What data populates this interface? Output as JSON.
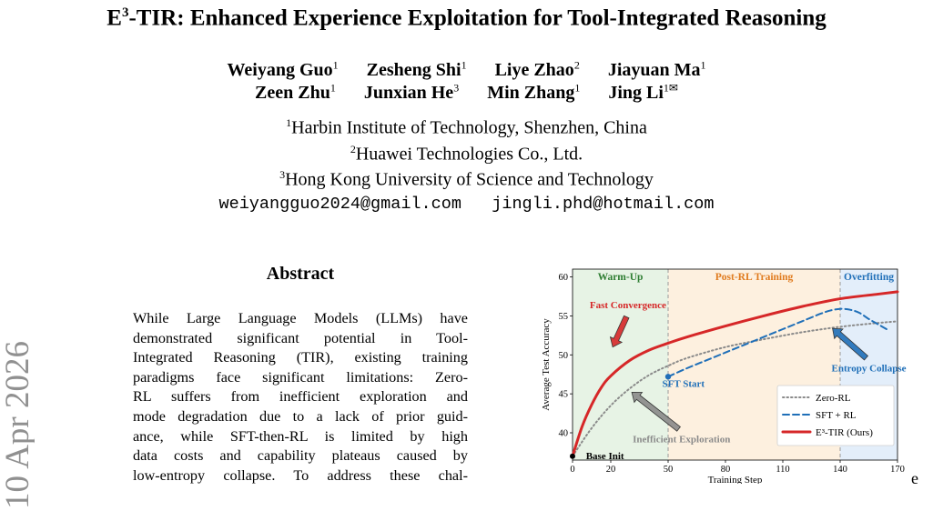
{
  "paper": {
    "title_prefix": "E",
    "title_sup": "3",
    "title_rest": "-TIR: Enhanced Experience Exploitation for Tool-Integrated Reasoning",
    "authors_row1": [
      {
        "name": "Weiyang Guo",
        "aff": "1"
      },
      {
        "name": "Zesheng Shi",
        "aff": "1"
      },
      {
        "name": "Liye Zhao",
        "aff": "2"
      },
      {
        "name": "Jiayuan Ma",
        "aff": "1"
      }
    ],
    "authors_row2": [
      {
        "name": "Zeen Zhu",
        "aff": "1"
      },
      {
        "name": "Junxian He",
        "aff": "3"
      },
      {
        "name": "Min Zhang",
        "aff": "1"
      },
      {
        "name": "Jing Li",
        "aff": "1✉"
      }
    ],
    "affiliations": [
      {
        "num": "1",
        "text": "Harbin Institute of Technology, Shenzhen, China"
      },
      {
        "num": "2",
        "text": "Huawei Technologies Co., Ltd."
      },
      {
        "num": "3",
        "text": "Hong Kong University of Science and Technology"
      }
    ],
    "emails": "weiyangguo2024@gmail.com   jingli.phd@hotmail.com",
    "side_stamp": "10 Apr 2026",
    "abstract_heading": "Abstract",
    "abstract_lines": [
      "While Large Language Models (LLMs) have",
      "demonstrated significant potential in Tool-",
      "Integrated Reasoning (TIR), existing training",
      "paradigms face significant limitations: Zero-",
      "RL suffers from inefficient exploration and",
      "mode degradation due to a lack of prior guid-",
      "ance, while SFT-then-RL is limited by high",
      "data costs and capability plateaus caused by",
      "low-entropy collapse. To address these chal-"
    ],
    "trailing_char": "e"
  },
  "chart_data": {
    "type": "line",
    "xlabel": "Training Step",
    "ylabel": "Average Test Accuracy",
    "xlim": [
      0,
      170
    ],
    "ylim": [
      36.5,
      61
    ],
    "xticks": [
      0,
      20,
      50,
      80,
      110,
      140,
      170
    ],
    "yticks": [
      40,
      45,
      50,
      55,
      60
    ],
    "grid": false,
    "legend_position": "lower-right",
    "phases": [
      {
        "label": "Warm-Up",
        "from": 0,
        "to": 50,
        "fill": "#e7f3e5",
        "color": "#2e7d32"
      },
      {
        "label": "Post-RL Training",
        "from": 50,
        "to": 140,
        "fill": "#fdf0df",
        "color": "#e07b1e"
      },
      {
        "label": "Overfitting",
        "from": 140,
        "to": 170,
        "fill": "#e3eefa",
        "color": "#1f6fb8"
      }
    ],
    "series": [
      {
        "name": "Zero-RL",
        "color": "#8a8a8a",
        "style": "dotted",
        "x": [
          0,
          10,
          20,
          30,
          40,
          50,
          60,
          80,
          100,
          120,
          140,
          160,
          170
        ],
        "y": [
          37.0,
          40.6,
          43.5,
          45.7,
          47.4,
          48.6,
          49.6,
          51.0,
          52.0,
          52.9,
          53.6,
          54.1,
          54.3
        ]
      },
      {
        "name": "SFT + RL",
        "color": "#1f6fb8",
        "style": "dashed",
        "x": [
          50,
          60,
          70,
          80,
          90,
          100,
          110,
          120,
          130,
          135,
          140,
          145,
          150,
          155,
          160,
          165
        ],
        "y": [
          47.2,
          48.3,
          49.3,
          50.3,
          51.3,
          52.3,
          53.3,
          54.3,
          55.3,
          55.7,
          55.9,
          55.8,
          55.4,
          54.6,
          53.9,
          53.2
        ]
      },
      {
        "name": "E³-TIR (Ours)",
        "color": "#d62728",
        "style": "solid",
        "x": [
          0,
          5,
          10,
          15,
          20,
          30,
          40,
          50,
          60,
          80,
          100,
          120,
          140,
          160,
          170
        ],
        "y": [
          37.0,
          40.8,
          43.6,
          45.8,
          47.3,
          49.3,
          50.6,
          51.5,
          52.3,
          53.7,
          55.0,
          56.2,
          57.2,
          57.8,
          58.1
        ]
      }
    ],
    "annotations": [
      {
        "text": "Fast Convergence",
        "color": "#d62728",
        "x": 29,
        "y": 56,
        "arrow_to": [
          21,
          51
        ]
      },
      {
        "text": "Inefficient Exploration",
        "color": "#8a8a8a",
        "x": 57,
        "y": 38.8,
        "arrow_to": [
          31,
          45.2
        ]
      },
      {
        "text": "Entropy Collapse",
        "color": "#1f6fb8",
        "x": 155,
        "y": 47.9,
        "arrow_to": [
          136,
          53.4
        ]
      },
      {
        "text": "SFT Start",
        "color": "#1f6fb8",
        "x": 58,
        "y": 45.9
      },
      {
        "text": "Base Init",
        "color": "#000000",
        "x": 7,
        "y": 37.1
      }
    ]
  }
}
